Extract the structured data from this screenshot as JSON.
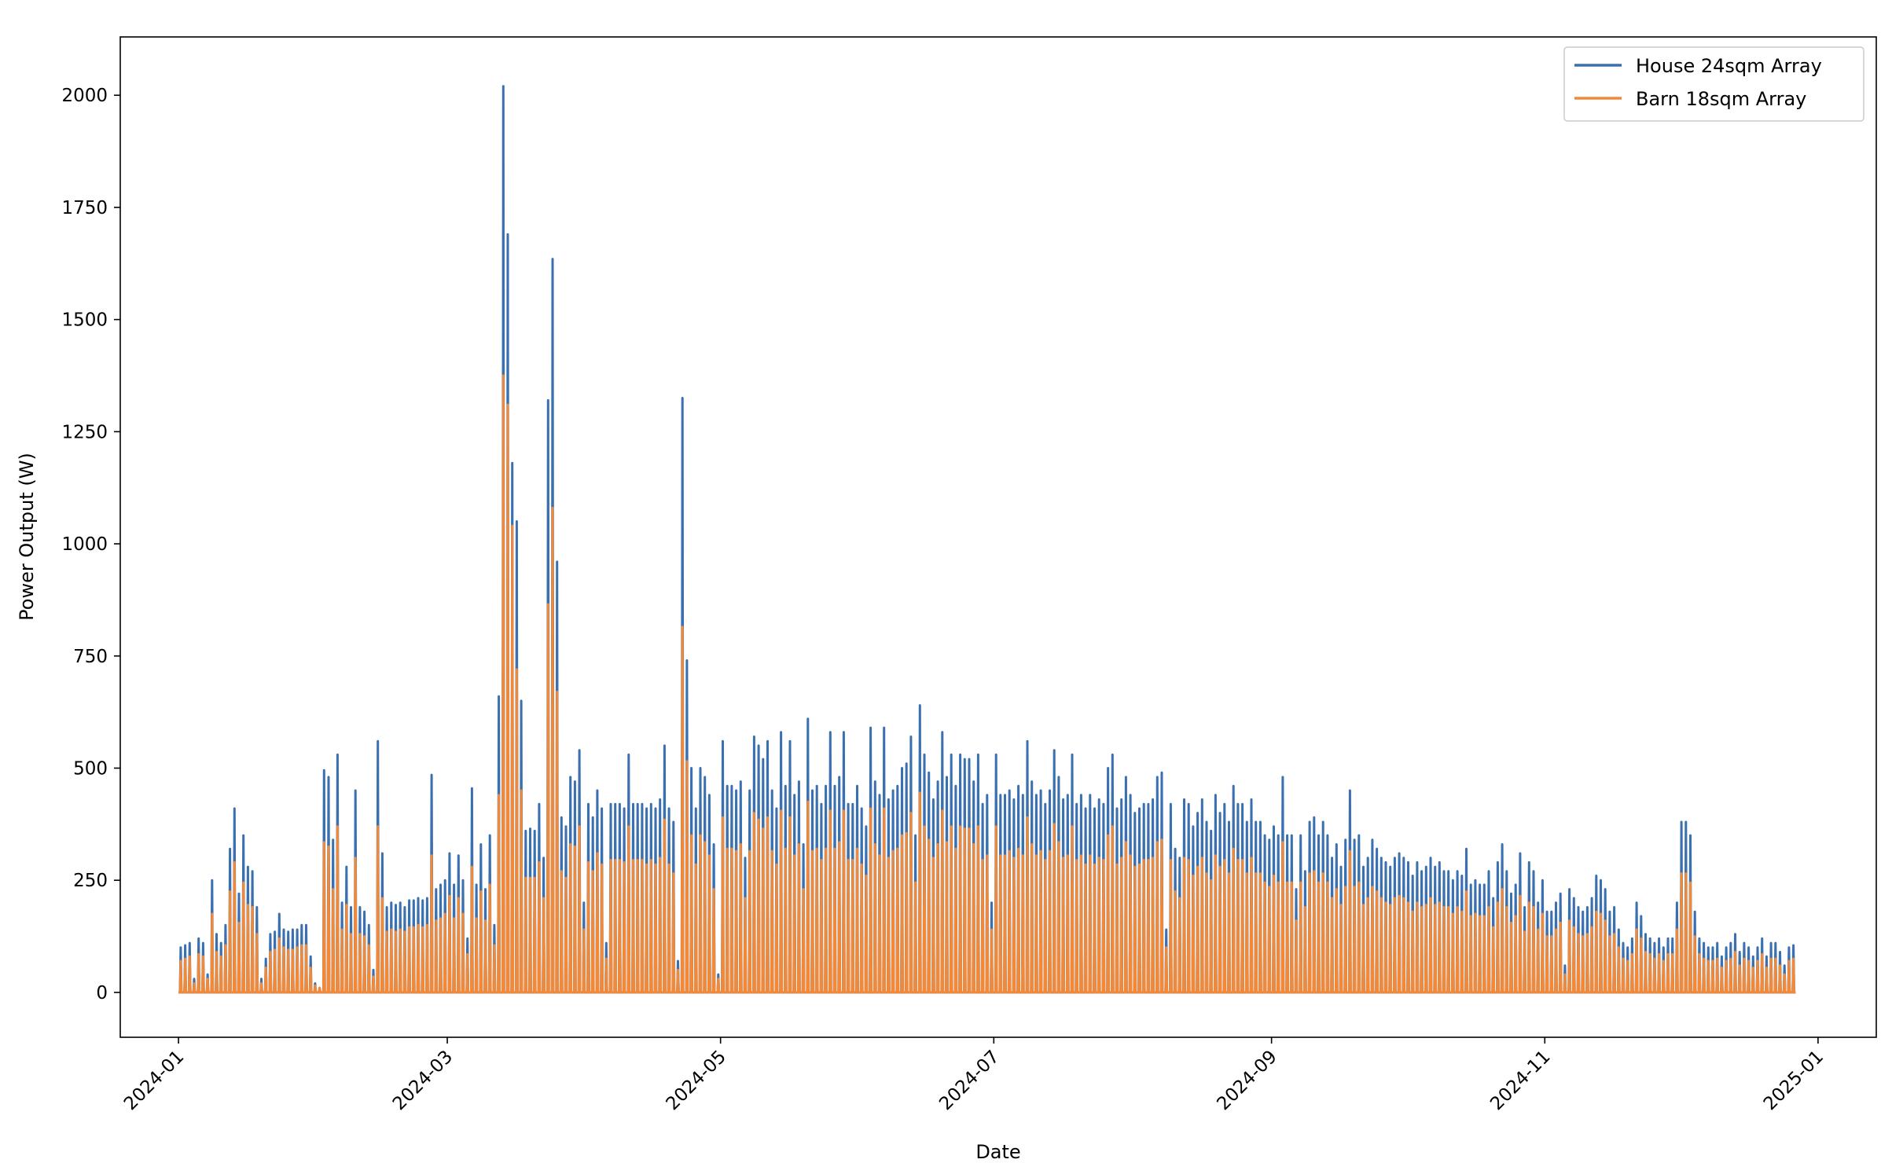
{
  "chart_data": {
    "type": "line",
    "title": "",
    "xlabel": "Date",
    "ylabel": "Power Output (W)",
    "xlim": [
      "2023-12-19",
      "2025-01-14"
    ],
    "ylim": [
      -100,
      2130
    ],
    "x_ticks": [
      "2024-01",
      "2024-03",
      "2024-05",
      "2024-07",
      "2024-09",
      "2024-11",
      "2025-01"
    ],
    "x_tick_dates": [
      "2024-01-01",
      "2024-03-01",
      "2024-05-01",
      "2024-07-01",
      "2024-09-01",
      "2024-11-01",
      "2025-01-01"
    ],
    "y_ticks": [
      0,
      250,
      500,
      750,
      1000,
      1250,
      1500,
      1750,
      2000
    ],
    "legend_position": "top-right",
    "x_start": "2024-01-01",
    "x_end": "2024-12-31",
    "x_step": "1 day (daily peak; output drops to 0 each night)",
    "series": [
      {
        "name": "House 24sqm Array",
        "color": "#3a70b0",
        "daily_peak": [
          100,
          105,
          110,
          30,
          120,
          110,
          40,
          250,
          130,
          110,
          150,
          320,
          410,
          220,
          350,
          280,
          270,
          190,
          30,
          75,
          130,
          135,
          175,
          140,
          135,
          140,
          140,
          150,
          150,
          80,
          20,
          10,
          495,
          480,
          340,
          530,
          200,
          280,
          190,
          450,
          190,
          180,
          150,
          50,
          560,
          310,
          190,
          200,
          195,
          200,
          190,
          205,
          205,
          210,
          205,
          210,
          485,
          230,
          240,
          250,
          310,
          240,
          305,
          250,
          120,
          455,
          240,
          330,
          230,
          350,
          150,
          660,
          2020,
          1690,
          1180,
          1050,
          650,
          360,
          365,
          360,
          420,
          300,
          1320,
          1635,
          960,
          390,
          370,
          480,
          470,
          540,
          200,
          420,
          390,
          450,
          410,
          110,
          420,
          420,
          420,
          410,
          530,
          420,
          420,
          420,
          410,
          420,
          410,
          430,
          550,
          410,
          380,
          70,
          1325,
          740,
          500,
          410,
          500,
          480,
          440,
          330,
          40,
          560,
          460,
          460,
          450,
          470,
          300,
          450,
          570,
          550,
          520,
          560,
          450,
          410,
          580,
          460,
          560,
          440,
          470,
          330,
          610,
          450,
          460,
          420,
          460,
          580,
          460,
          480,
          580,
          420,
          420,
          460,
          410,
          370,
          590,
          470,
          440,
          590,
          430,
          450,
          460,
          500,
          510,
          570,
          350,
          640,
          530,
          490,
          430,
          470,
          580,
          480,
          530,
          460,
          530,
          520,
          520,
          470,
          530,
          420,
          440,
          200,
          530,
          440,
          440,
          450,
          430,
          460,
          440,
          560,
          470,
          440,
          450,
          420,
          450,
          540,
          480,
          430,
          440,
          530,
          420,
          440,
          410,
          440,
          410,
          430,
          420,
          500,
          530,
          410,
          430,
          480,
          440,
          400,
          410,
          420,
          420,
          430,
          480,
          490,
          140,
          420,
          320,
          300,
          430,
          420,
          370,
          400,
          430,
          380,
          360,
          440,
          400,
          420,
          380,
          460,
          420,
          420,
          380,
          430,
          380,
          380,
          350,
          340,
          370,
          350,
          480,
          350,
          350,
          230,
          350,
          270,
          380,
          390,
          350,
          380,
          350,
          300,
          330,
          280,
          340,
          450,
          340,
          350,
          280,
          300,
          340,
          320,
          300,
          290,
          280,
          300,
          310,
          300,
          290,
          260,
          290,
          270,
          280,
          300,
          280,
          290,
          270,
          270,
          250,
          270,
          260,
          320,
          240,
          250,
          240,
          240,
          270,
          210,
          290,
          330,
          270,
          220,
          240,
          310,
          190,
          290,
          270,
          200,
          250,
          180,
          180,
          200,
          220,
          60,
          230,
          210,
          190,
          180,
          190,
          210,
          260,
          250,
          230,
          180,
          190,
          140,
          110,
          100,
          120,
          200,
          170,
          130,
          120,
          110,
          120,
          100,
          120,
          120,
          200,
          380,
          380,
          350,
          180,
          120,
          110,
          100,
          100,
          110,
          80,
          100,
          110,
          130,
          90,
          110,
          100,
          80,
          100,
          120,
          80,
          110,
          110,
          90,
          60,
          100,
          105
        ]
      },
      {
        "name": "Barn 18sqm Array",
        "color": "#f0893a",
        "daily_peak": [
          70,
          75,
          80,
          20,
          85,
          80,
          30,
          175,
          90,
          80,
          105,
          225,
          290,
          155,
          245,
          195,
          190,
          130,
          20,
          55,
          90,
          95,
          120,
          100,
          95,
          95,
          100,
          105,
          105,
          55,
          15,
          10,
          335,
          325,
          230,
          370,
          140,
          195,
          130,
          300,
          130,
          125,
          105,
          35,
          370,
          210,
          135,
          140,
          135,
          140,
          135,
          145,
          145,
          150,
          145,
          150,
          305,
          160,
          165,
          175,
          215,
          165,
          210,
          175,
          85,
          280,
          165,
          225,
          160,
          240,
          105,
          440,
          1375,
          1310,
          1040,
          720,
          450,
          255,
          255,
          255,
          290,
          210,
          865,
          1080,
          670,
          270,
          255,
          330,
          325,
          370,
          140,
          290,
          270,
          310,
          285,
          75,
          295,
          295,
          295,
          290,
          370,
          295,
          295,
          295,
          285,
          295,
          285,
          300,
          385,
          285,
          265,
          50,
          815,
          515,
          350,
          285,
          350,
          335,
          305,
          230,
          30,
          390,
          320,
          320,
          315,
          330,
          210,
          315,
          400,
          385,
          365,
          390,
          315,
          285,
          405,
          320,
          390,
          305,
          330,
          230,
          425,
          315,
          320,
          295,
          320,
          405,
          320,
          335,
          405,
          295,
          295,
          320,
          285,
          260,
          410,
          330,
          305,
          410,
          300,
          315,
          320,
          350,
          355,
          400,
          245,
          445,
          370,
          340,
          300,
          330,
          405,
          335,
          370,
          320,
          370,
          365,
          365,
          330,
          370,
          295,
          305,
          140,
          370,
          305,
          305,
          315,
          300,
          320,
          305,
          390,
          330,
          305,
          315,
          295,
          315,
          375,
          335,
          300,
          305,
          370,
          295,
          305,
          285,
          305,
          285,
          300,
          295,
          350,
          370,
          285,
          300,
          335,
          305,
          280,
          285,
          295,
          295,
          300,
          335,
          340,
          100,
          295,
          225,
          210,
          300,
          295,
          260,
          280,
          300,
          265,
          250,
          305,
          280,
          295,
          265,
          320,
          295,
          295,
          265,
          300,
          265,
          265,
          245,
          235,
          260,
          245,
          335,
          245,
          245,
          160,
          245,
          190,
          265,
          270,
          245,
          265,
          245,
          210,
          230,
          195,
          235,
          315,
          235,
          245,
          195,
          210,
          235,
          225,
          210,
          200,
          195,
          210,
          215,
          210,
          200,
          180,
          200,
          190,
          195,
          210,
          195,
          200,
          190,
          190,
          175,
          190,
          180,
          225,
          170,
          175,
          170,
          170,
          190,
          145,
          200,
          230,
          190,
          155,
          170,
          215,
          135,
          200,
          190,
          140,
          175,
          125,
          125,
          140,
          155,
          40,
          160,
          145,
          130,
          125,
          130,
          145,
          180,
          175,
          160,
          125,
          130,
          100,
          75,
          70,
          85,
          140,
          120,
          90,
          85,
          75,
          85,
          70,
          85,
          85,
          140,
          265,
          265,
          245,
          125,
          85,
          75,
          70,
          70,
          75,
          55,
          70,
          75,
          90,
          60,
          75,
          70,
          55,
          70,
          85,
          55,
          75,
          75,
          60,
          40,
          70,
          75
        ]
      }
    ]
  }
}
